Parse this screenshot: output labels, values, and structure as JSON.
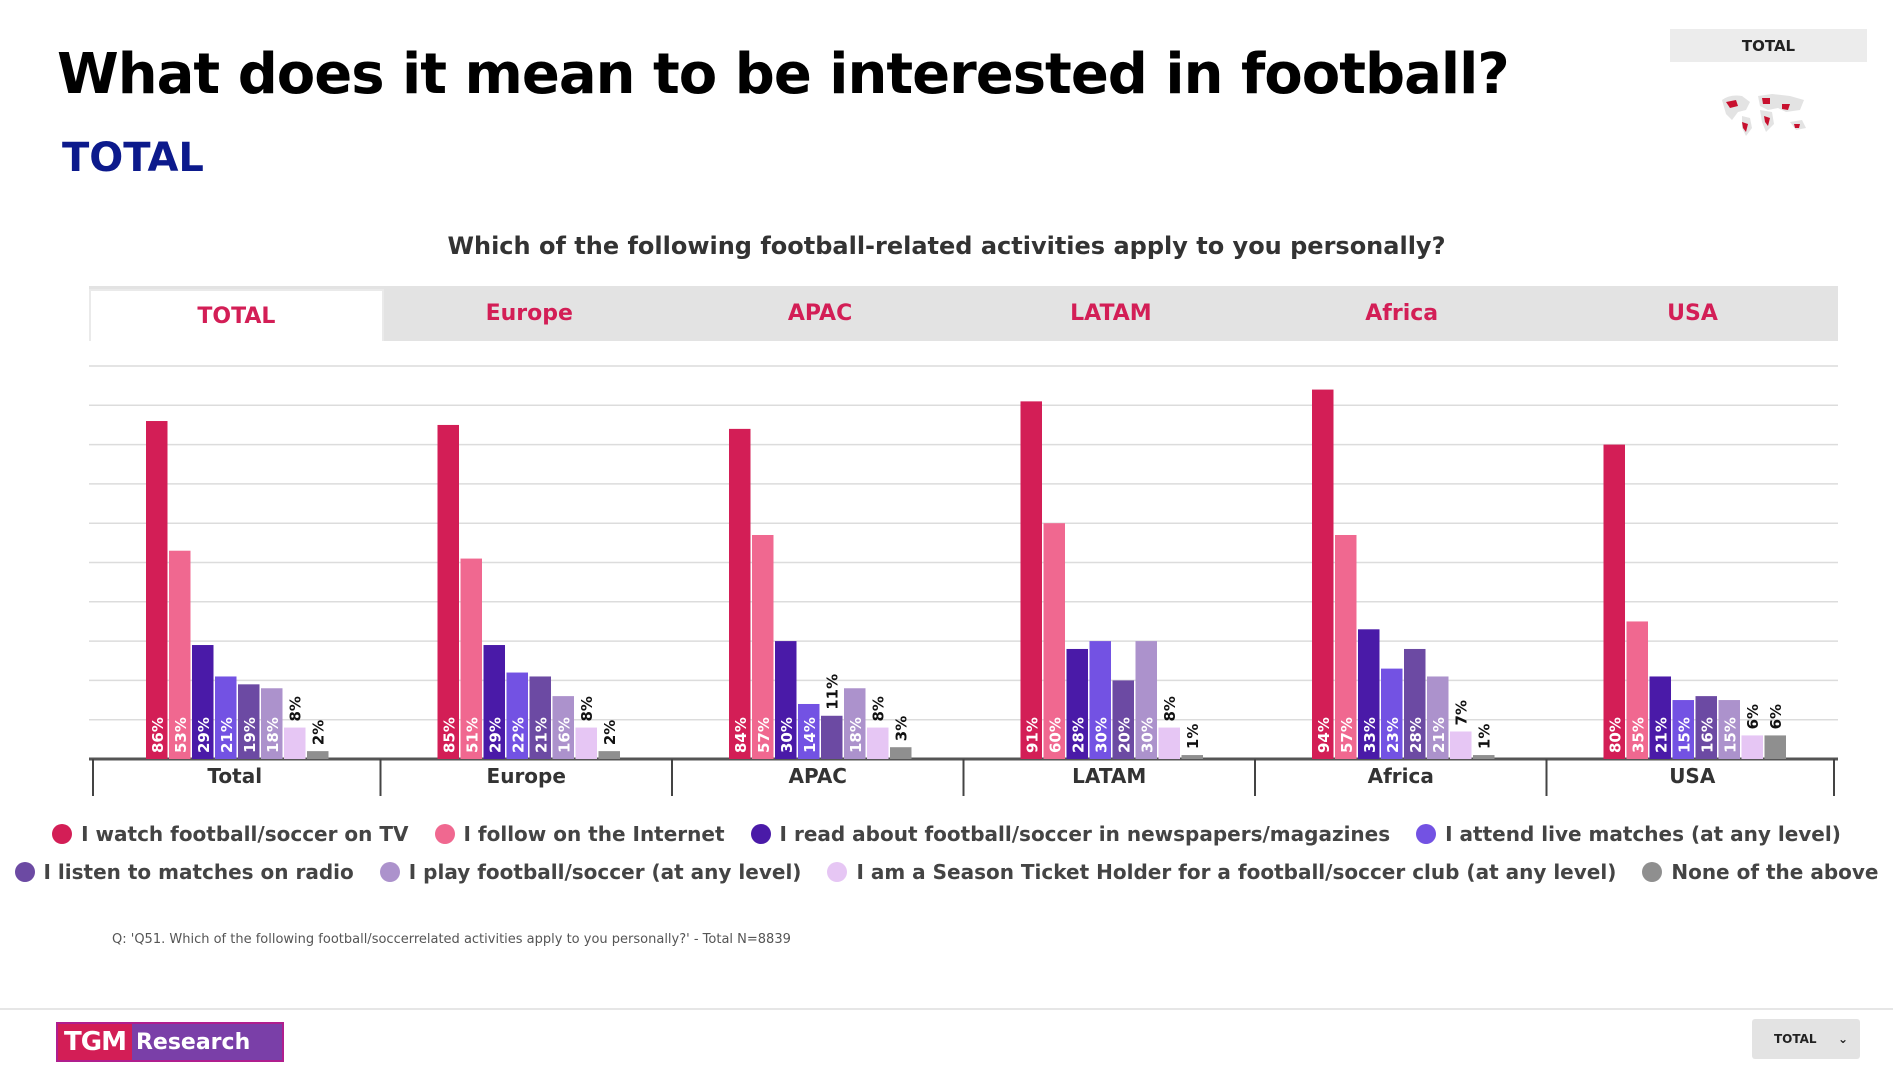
{
  "header": {
    "title": "What does it mean to be interested in football?",
    "subtitle": "TOTAL",
    "badge": "TOTAL"
  },
  "tabs": [
    {
      "label": "TOTAL",
      "active": true
    },
    {
      "label": "Europe",
      "active": false
    },
    {
      "label": "APAC",
      "active": false
    },
    {
      "label": "LATAM",
      "active": false
    },
    {
      "label": "Africa",
      "active": false
    },
    {
      "label": "USA",
      "active": false
    }
  ],
  "footnote": "Q: 'Q51. Which of the following football/soccerrelated activities apply to you personally?' - Total N=8839",
  "footer": {
    "logo_mark": "TGM",
    "logo_text": "Research",
    "select_value": "TOTAL",
    "chevron": "⌄"
  },
  "chart_data": {
    "type": "bar",
    "title": "Which of the following football-related activities apply to you personally?",
    "categories": [
      "Total",
      "Europe",
      "APAC",
      "LATAM",
      "Africa",
      "USA"
    ],
    "ylim": [
      0,
      100
    ],
    "value_suffix": "%",
    "grid": true,
    "legend_position": "bottom",
    "series": [
      {
        "name": "I watch football/soccer on TV",
        "color": "#d31e56",
        "values": [
          86,
          85,
          84,
          91,
          94,
          80
        ]
      },
      {
        "name": "I follow on the Internet",
        "color": "#f06890",
        "values": [
          53,
          51,
          57,
          60,
          57,
          35
        ]
      },
      {
        "name": "I read about football/soccer in newspapers/magazines",
        "color": "#4a1aa8",
        "values": [
          29,
          29,
          30,
          28,
          33,
          21
        ]
      },
      {
        "name": "I attend live matches (at any level)",
        "color": "#7352e3",
        "values": [
          21,
          22,
          14,
          30,
          23,
          15
        ]
      },
      {
        "name": "I listen to matches on radio",
        "color": "#6c4aa3",
        "values": [
          19,
          21,
          11,
          20,
          28,
          16
        ]
      },
      {
        "name": "I play football/soccer (at any level)",
        "color": "#ac92cc",
        "values": [
          18,
          16,
          18,
          30,
          21,
          15
        ]
      },
      {
        "name": "I am a Season Ticket Holder for a football/soccer club (at any level)",
        "color": "#e6c6f4",
        "values": [
          8,
          8,
          8,
          8,
          7,
          6
        ]
      },
      {
        "name": "None of the above",
        "color": "#8f8f8f",
        "values": [
          2,
          2,
          3,
          1,
          1,
          6
        ]
      }
    ]
  }
}
